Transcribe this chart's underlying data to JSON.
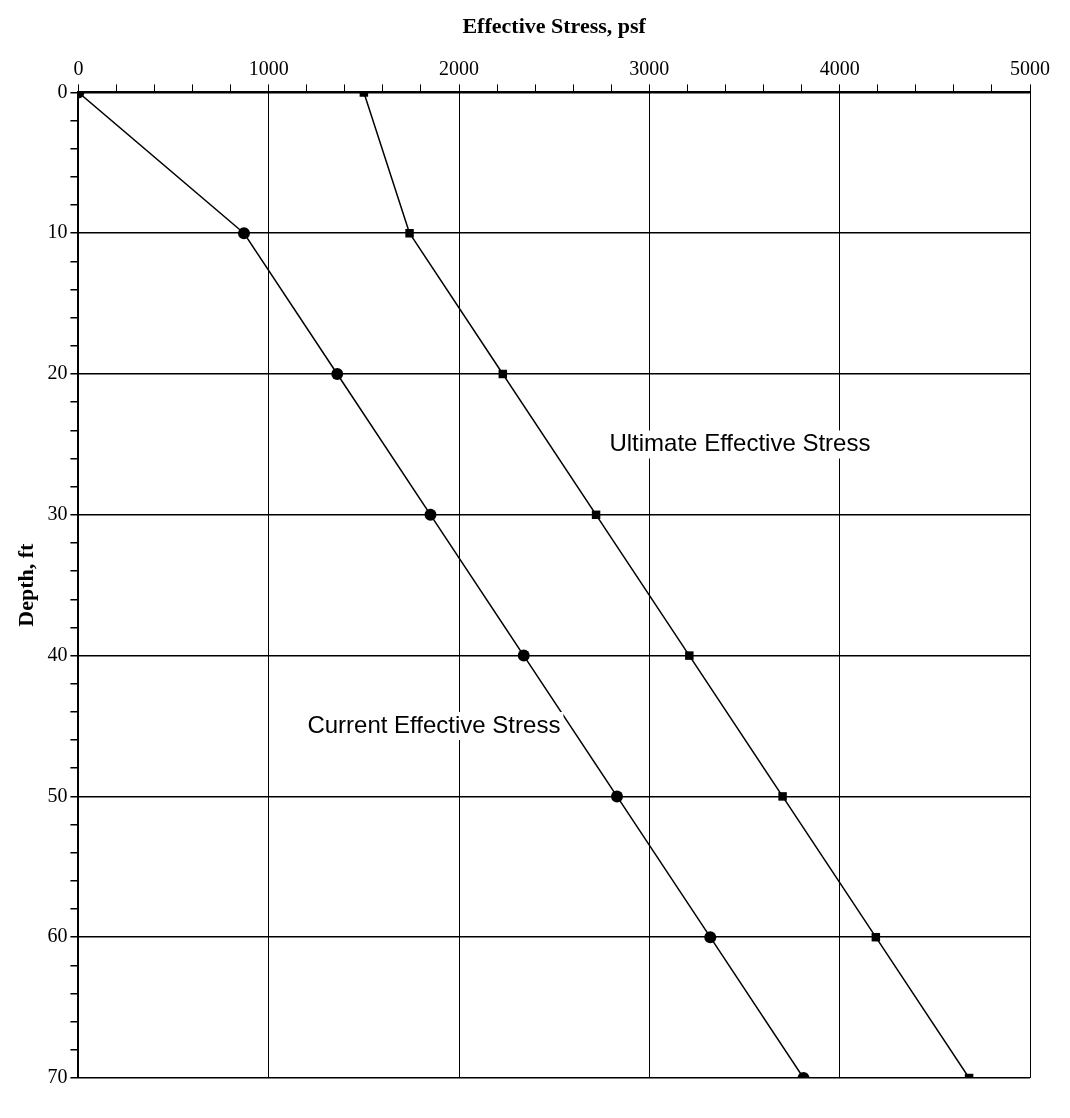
{
  "chart_data": {
    "type": "line",
    "xlabel": "Effective Stress, psf",
    "ylabel": "Depth, ft",
    "xlim": [
      0,
      5000
    ],
    "ylim": [
      70,
      0
    ],
    "xticks": [
      0,
      {
        "value": 200,
        "label": null
      },
      {
        "value": 400,
        "label": null
      },
      {
        "value": 600,
        "label": null
      },
      {
        "value": 800,
        "label": null
      },
      1000,
      {
        "value": 1200,
        "label": null
      },
      {
        "value": 1400,
        "label": null
      },
      {
        "value": 1600,
        "label": null
      },
      {
        "value": 1800,
        "label": null
      },
      2000,
      {
        "value": 2200,
        "label": null
      },
      {
        "value": 2400,
        "label": null
      },
      {
        "value": 2600,
        "label": null
      },
      {
        "value": 2800,
        "label": null
      },
      3000,
      {
        "value": 3200,
        "label": null
      },
      {
        "value": 3400,
        "label": null
      },
      {
        "value": 3600,
        "label": null
      },
      {
        "value": 3800,
        "label": null
      },
      4000,
      {
        "value": 4200,
        "label": null
      },
      {
        "value": 4400,
        "label": null
      },
      {
        "value": 4600,
        "label": null
      },
      {
        "value": 4800,
        "label": null
      },
      5000
    ],
    "yticks": [
      0,
      {
        "value": 2,
        "label": null
      },
      {
        "value": 4,
        "label": null
      },
      {
        "value": 6,
        "label": null
      },
      {
        "value": 8,
        "label": null
      },
      10,
      {
        "value": 12,
        "label": null
      },
      {
        "value": 14,
        "label": null
      },
      {
        "value": 16,
        "label": null
      },
      {
        "value": 18,
        "label": null
      },
      20,
      {
        "value": 22,
        "label": null
      },
      {
        "value": 24,
        "label": null
      },
      {
        "value": 26,
        "label": null
      },
      {
        "value": 28,
        "label": null
      },
      30,
      {
        "value": 32,
        "label": null
      },
      {
        "value": 34,
        "label": null
      },
      {
        "value": 36,
        "label": null
      },
      {
        "value": 38,
        "label": null
      },
      40,
      {
        "value": 42,
        "label": null
      },
      {
        "value": 44,
        "label": null
      },
      {
        "value": 46,
        "label": null
      },
      {
        "value": 48,
        "label": null
      },
      50,
      {
        "value": 52,
        "label": null
      },
      {
        "value": 54,
        "label": null
      },
      {
        "value": 56,
        "label": null
      },
      {
        "value": 58,
        "label": null
      },
      60,
      {
        "value": 62,
        "label": null
      },
      {
        "value": 64,
        "label": null
      },
      {
        "value": 66,
        "label": null
      },
      {
        "value": 68,
        "label": null
      },
      70
    ],
    "grid": true,
    "line_style": "solid",
    "series": [
      {
        "name": "Current Effective Stress",
        "color": "#000000",
        "marker": "circle",
        "x": [
          0,
          870,
          1360,
          1850,
          2340,
          2830,
          3320,
          3810
        ],
        "values": [
          0,
          10,
          20,
          30,
          40,
          50,
          60,
          70
        ]
      },
      {
        "name": "Ultimate Effective Stress",
        "color": "#000000",
        "marker": "square",
        "x": [
          1500,
          1740,
          2230,
          2720,
          3210,
          3700,
          4190,
          4680
        ],
        "values": [
          0,
          10,
          20,
          30,
          40,
          50,
          60,
          70
        ]
      }
    ]
  }
}
